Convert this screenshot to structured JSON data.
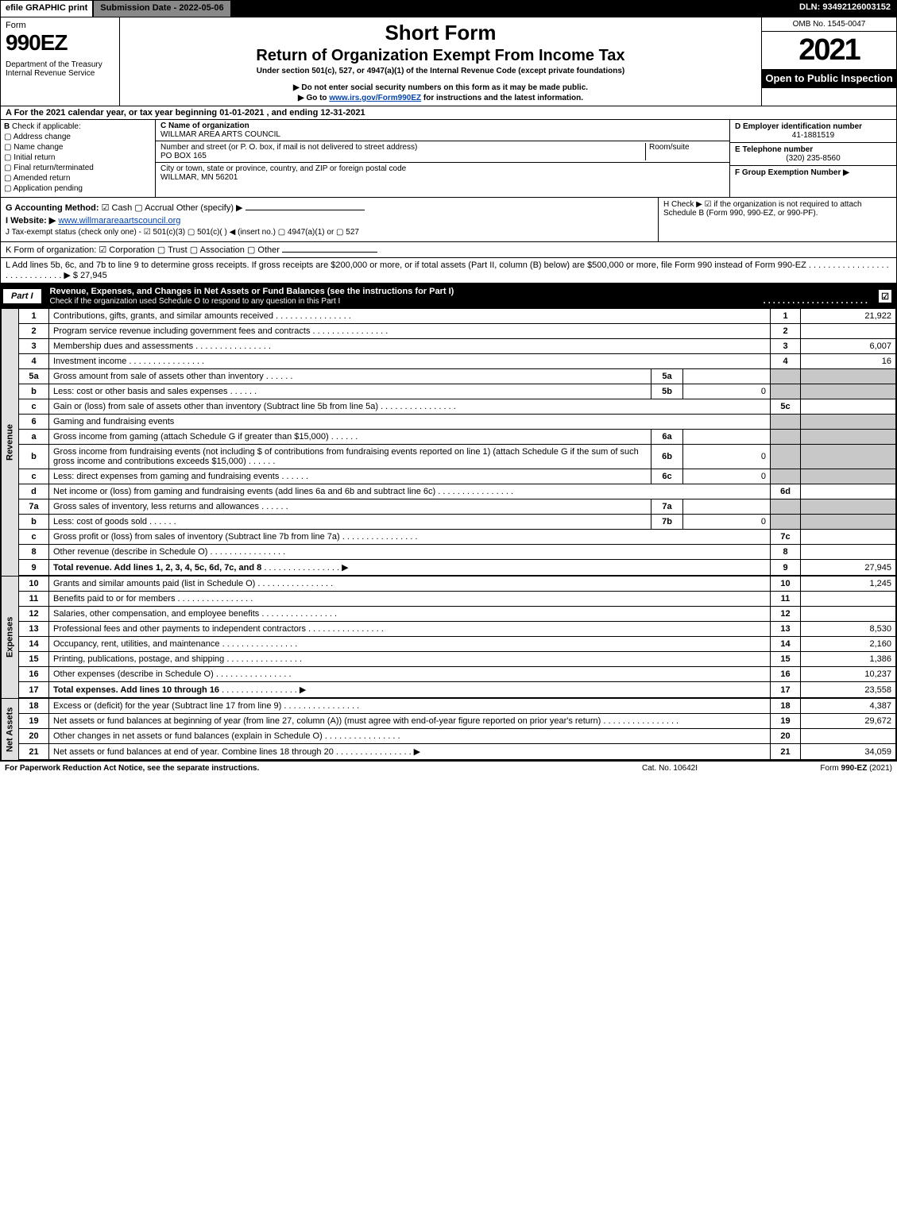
{
  "topbar": {
    "efile": "efile GRAPHIC print",
    "submission": "Submission Date - 2022-05-06",
    "dln": "DLN: 93492126003152"
  },
  "header": {
    "form_word": "Form",
    "form_number": "990EZ",
    "dept": "Department of the Treasury\nInternal Revenue Service",
    "title1": "Short Form",
    "title2": "Return of Organization Exempt From Income Tax",
    "subtitle": "Under section 501(c), 527, or 4947(a)(1) of the Internal Revenue Code (except private foundations)",
    "note1_prefix": "▶ Do not enter social security numbers on this form as it may be made public.",
    "note2_prefix": "▶ Go to ",
    "note2_link": "www.irs.gov/Form990EZ",
    "note2_suffix": " for instructions and the latest information.",
    "omb": "OMB No. 1545-0047",
    "year": "2021",
    "open": "Open to Public Inspection"
  },
  "row_a": "A  For the 2021 calendar year, or tax year beginning 01-01-2021 , and ending 12-31-2021",
  "section_b": {
    "label": "B",
    "text": "Check if applicable:",
    "items": [
      "Address change",
      "Name change",
      "Initial return",
      "Final return/terminated",
      "Amended return",
      "Application pending"
    ]
  },
  "section_c": {
    "name_label": "C Name of organization",
    "org_name": "WILLMAR AREA ARTS COUNCIL",
    "street_label": "Number and street (or P. O. box, if mail is not delivered to street address)",
    "room_label": "Room/suite",
    "street": "PO BOX 165",
    "city_label": "City or town, state or province, country, and ZIP or foreign postal code",
    "city": "WILLMAR, MN  56201"
  },
  "section_d": {
    "ein_label": "D Employer identification number",
    "ein": "41-1881519",
    "tel_label": "E Telephone number",
    "tel": "(320) 235-8560",
    "grp_label": "F Group Exemption Number  ▶"
  },
  "row_g": {
    "label": "G Accounting Method:",
    "cash": "☑ Cash",
    "accrual": "▢ Accrual",
    "other": "Other (specify) ▶"
  },
  "row_h": "H  Check ▶  ☑  if the organization is not required to attach Schedule B (Form 990, 990-EZ, or 990-PF).",
  "row_i": {
    "label": "I Website: ▶",
    "url": "www.willmarareaartscouncil.org"
  },
  "row_j": "J Tax-exempt status (check only one) - ☑ 501(c)(3)  ▢ 501(c)(  ) ◀ (insert no.)  ▢ 4947(a)(1) or  ▢ 527",
  "row_k": "K Form of organization:   ☑ Corporation   ▢ Trust   ▢ Association   ▢ Other",
  "row_l": {
    "text": "L Add lines 5b, 6c, and 7b to line 9 to determine gross receipts. If gross receipts are $200,000 or more, or if total assets (Part II, column (B) below) are $500,000 or more, file Form 990 instead of Form 990-EZ  .  .  .  .  .  .  .  .  .  .  .  .  .  .  .  .  .  .  .  .  .  .  .  .  .  .  .  .  .  ▶ $",
    "amount": "27,945"
  },
  "part1": {
    "label": "Part I",
    "title": "Revenue, Expenses, and Changes in Net Assets or Fund Balances (see the instructions for Part I)",
    "subtitle": "Check if the organization used Schedule O to respond to any question in this Part I",
    "checked": "☑"
  },
  "sections": [
    {
      "side": "Revenue",
      "rows": [
        {
          "n": "1",
          "d": "Contributions, gifts, grants, and similar amounts received",
          "ref": "1",
          "amt": "21,922"
        },
        {
          "n": "2",
          "d": "Program service revenue including government fees and contracts",
          "ref": "2",
          "amt": ""
        },
        {
          "n": "3",
          "d": "Membership dues and assessments",
          "ref": "3",
          "amt": "6,007"
        },
        {
          "n": "4",
          "d": "Investment income",
          "ref": "4",
          "amt": "16"
        },
        {
          "n": "5a",
          "d": "Gross amount from sale of assets other than inventory",
          "sub": "5a",
          "subv": "",
          "gray": true
        },
        {
          "n": "b",
          "d": "Less: cost or other basis and sales expenses",
          "sub": "5b",
          "subv": "0",
          "gray": true
        },
        {
          "n": "c",
          "d": "Gain or (loss) from sale of assets other than inventory (Subtract line 5b from line 5a)",
          "ref": "5c",
          "amt": ""
        },
        {
          "n": "6",
          "d": "Gaming and fundraising events",
          "gray": true,
          "grayref": true
        },
        {
          "n": "a",
          "d": "Gross income from gaming (attach Schedule G if greater than $15,000)",
          "sub": "6a",
          "subv": "",
          "gray": true
        },
        {
          "n": "b",
          "d": "Gross income from fundraising events (not including $                    of contributions from fundraising events reported on line 1) (attach Schedule G if the sum of such gross income and contributions exceeds $15,000)",
          "sub": "6b",
          "subv": "0",
          "gray": true
        },
        {
          "n": "c",
          "d": "Less: direct expenses from gaming and fundraising events",
          "sub": "6c",
          "subv": "0",
          "gray": true
        },
        {
          "n": "d",
          "d": "Net income or (loss) from gaming and fundraising events (add lines 6a and 6b and subtract line 6c)",
          "ref": "6d",
          "amt": ""
        },
        {
          "n": "7a",
          "d": "Gross sales of inventory, less returns and allowances",
          "sub": "7a",
          "subv": "",
          "gray": true
        },
        {
          "n": "b",
          "d": "Less: cost of goods sold",
          "sub": "7b",
          "subv": "0",
          "gray": true
        },
        {
          "n": "c",
          "d": "Gross profit or (loss) from sales of inventory (Subtract line 7b from line 7a)",
          "ref": "7c",
          "amt": ""
        },
        {
          "n": "8",
          "d": "Other revenue (describe in Schedule O)",
          "ref": "8",
          "amt": ""
        },
        {
          "n": "9",
          "d": "Total revenue. Add lines 1, 2, 3, 4, 5c, 6d, 7c, and 8",
          "ref": "9",
          "amt": "27,945",
          "bold": true,
          "arrow": true
        }
      ]
    },
    {
      "side": "Expenses",
      "rows": [
        {
          "n": "10",
          "d": "Grants and similar amounts paid (list in Schedule O)",
          "ref": "10",
          "amt": "1,245"
        },
        {
          "n": "11",
          "d": "Benefits paid to or for members",
          "ref": "11",
          "amt": ""
        },
        {
          "n": "12",
          "d": "Salaries, other compensation, and employee benefits",
          "ref": "12",
          "amt": ""
        },
        {
          "n": "13",
          "d": "Professional fees and other payments to independent contractors",
          "ref": "13",
          "amt": "8,530"
        },
        {
          "n": "14",
          "d": "Occupancy, rent, utilities, and maintenance",
          "ref": "14",
          "amt": "2,160"
        },
        {
          "n": "15",
          "d": "Printing, publications, postage, and shipping",
          "ref": "15",
          "amt": "1,386"
        },
        {
          "n": "16",
          "d": "Other expenses (describe in Schedule O)",
          "ref": "16",
          "amt": "10,237"
        },
        {
          "n": "17",
          "d": "Total expenses. Add lines 10 through 16",
          "ref": "17",
          "amt": "23,558",
          "bold": true,
          "arrow": true
        }
      ]
    },
    {
      "side": "Net Assets",
      "rows": [
        {
          "n": "18",
          "d": "Excess or (deficit) for the year (Subtract line 17 from line 9)",
          "ref": "18",
          "amt": "4,387"
        },
        {
          "n": "19",
          "d": "Net assets or fund balances at beginning of year (from line 27, column (A)) (must agree with end-of-year figure reported on prior year's return)",
          "ref": "19",
          "amt": "29,672"
        },
        {
          "n": "20",
          "d": "Other changes in net assets or fund balances (explain in Schedule O)",
          "ref": "20",
          "amt": ""
        },
        {
          "n": "21",
          "d": "Net assets or fund balances at end of year. Combine lines 18 through 20",
          "ref": "21",
          "amt": "34,059",
          "arrow": true
        }
      ]
    }
  ],
  "footer": {
    "left": "For Paperwork Reduction Act Notice, see the separate instructions.",
    "mid": "Cat. No. 10642I",
    "right": "Form 990-EZ (2021)"
  },
  "colors": {
    "black": "#000000",
    "white": "#ffffff",
    "gray_side": "#e0e0e0",
    "gray_cell": "#c8c8c8",
    "topgray": "#888888",
    "link": "#0645ad"
  }
}
